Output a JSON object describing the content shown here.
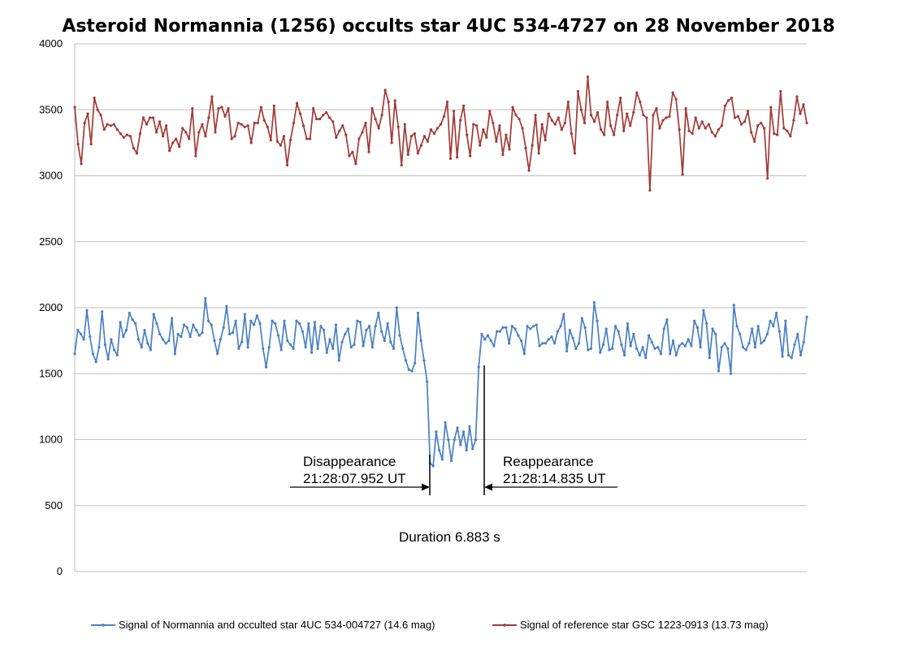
{
  "chart_data": {
    "type": "line",
    "title": "Asteroid Normannia (1256) occults star 4UC 534-4727 on 28 November 2018",
    "xlabel": "",
    "ylabel": "",
    "ylim": [
      0,
      4000
    ],
    "yticks": [
      0,
      500,
      1000,
      1500,
      2000,
      2500,
      3000,
      3500,
      4000
    ],
    "grid": true,
    "legend_position": "bottom",
    "series": [
      {
        "name": "Signal of Normannia and occulted star 4UC 534-004727 (14.6 mag)",
        "color": "#4a7fc1",
        "values": [
          1650,
          1830,
          1800,
          1760,
          1980,
          1780,
          1650,
          1590,
          1700,
          1970,
          1720,
          1610,
          1760,
          1680,
          1640,
          1890,
          1780,
          1830,
          1960,
          1910,
          1880,
          1760,
          1700,
          1830,
          1730,
          1680,
          1950,
          1880,
          1800,
          1760,
          1730,
          1750,
          1920,
          1650,
          1800,
          1780,
          1870,
          1850,
          1780,
          1870,
          1830,
          1790,
          1810,
          2070,
          1900,
          1870,
          1750,
          1650,
          1760,
          1850,
          2010,
          1800,
          1810,
          1900,
          1690,
          1740,
          1950,
          1700,
          1900,
          1870,
          1940,
          1880,
          1690,
          1550,
          1700,
          1900,
          1880,
          1790,
          1680,
          1900,
          1750,
          1720,
          1690,
          1900,
          1880,
          1820,
          1700,
          1880,
          1660,
          1890,
          1690,
          1860,
          1830,
          1660,
          1760,
          1690,
          1870,
          1600,
          1740,
          1800,
          1840,
          1700,
          1720,
          1900,
          1890,
          1710,
          1830,
          1860,
          1700,
          1860,
          1960,
          1820,
          1750,
          1880,
          1740,
          1690,
          2000,
          1790,
          1690,
          1600,
          1530,
          1520,
          1580,
          1960,
          1750,
          1600,
          1440,
          820,
          800,
          1060,
          920,
          850,
          1130,
          1000,
          840,
          1000,
          1090,
          960,
          1060,
          920,
          1100,
          930,
          1000,
          1550,
          1800,
          1760,
          1790,
          1750,
          1710,
          1820,
          1820,
          1850,
          1850,
          1730,
          1860,
          1840,
          1790,
          1750,
          1650,
          1860,
          1840,
          1860,
          1870,
          1710,
          1730,
          1730,
          1760,
          1780,
          1730,
          1820,
          1860,
          1950,
          1670,
          1830,
          1770,
          1690,
          1730,
          1920,
          1850,
          1680,
          1690,
          2040,
          1900,
          1660,
          1720,
          1840,
          1680,
          1690,
          1860,
          1820,
          1720,
          1640,
          1880,
          1710,
          1800,
          1690,
          1640,
          1700,
          1620,
          1790,
          1740,
          1690,
          1700,
          1650,
          1840,
          1910,
          1650,
          1750,
          1640,
          1710,
          1730,
          1710,
          1760,
          1710,
          1900,
          1850,
          1700,
          1980,
          1880,
          1620,
          1840,
          1800,
          1520,
          1700,
          1730,
          1690,
          1500,
          2020,
          1860,
          1800,
          1700,
          1680,
          1730,
          1840,
          1700,
          1860,
          1730,
          1750,
          1800,
          1900,
          1860,
          1960,
          1820,
          1630,
          1900,
          1640,
          1620,
          1720,
          1800,
          1640,
          1740,
          1930
        ]
      },
      {
        "name": "Signal of reference star GSC 1223-0913 (13.73 mag)",
        "color": "#a03a36",
        "values": [
          3520,
          3240,
          3090,
          3400,
          3470,
          3240,
          3590,
          3500,
          3460,
          3350,
          3390,
          3380,
          3390,
          3350,
          3320,
          3290,
          3310,
          3300,
          3210,
          3170,
          3320,
          3440,
          3390,
          3440,
          3440,
          3330,
          3410,
          3300,
          3380,
          3190,
          3250,
          3280,
          3220,
          3360,
          3330,
          3280,
          3510,
          3150,
          3330,
          3390,
          3300,
          3440,
          3600,
          3330,
          3510,
          3520,
          3450,
          3510,
          3280,
          3300,
          3400,
          3390,
          3370,
          3380,
          3250,
          3400,
          3400,
          3520,
          3420,
          3370,
          3270,
          3530,
          3260,
          3230,
          3300,
          3080,
          3270,
          3400,
          3550,
          3470,
          3380,
          3280,
          3280,
          3510,
          3430,
          3430,
          3460,
          3480,
          3440,
          3410,
          3290,
          3340,
          3380,
          3310,
          3150,
          3180,
          3090,
          3280,
          3330,
          3400,
          3180,
          3510,
          3430,
          3360,
          3460,
          3650,
          3560,
          3250,
          3570,
          3370,
          3080,
          3390,
          3160,
          3300,
          3320,
          3170,
          3230,
          3300,
          3260,
          3350,
          3320,
          3360,
          3390,
          3450,
          3560,
          3130,
          3490,
          3140,
          3420,
          3530,
          3310,
          3150,
          3390,
          3380,
          3230,
          3350,
          3290,
          3490,
          3400,
          3260,
          3380,
          3160,
          3310,
          3200,
          3520,
          3460,
          3430,
          3360,
          3210,
          3040,
          3230,
          3460,
          3170,
          3390,
          3270,
          3470,
          3420,
          3390,
          3440,
          3350,
          3400,
          3560,
          3320,
          3170,
          3640,
          3500,
          3400,
          3750,
          3460,
          3410,
          3480,
          3350,
          3310,
          3560,
          3380,
          3310,
          3460,
          3590,
          3340,
          3470,
          3380,
          3480,
          3630,
          3560,
          3460,
          3440,
          2890,
          3460,
          3510,
          3360,
          3420,
          3440,
          3450,
          3630,
          3580,
          3350,
          3010,
          3510,
          3340,
          3320,
          3440,
          3360,
          3410,
          3360,
          3390,
          3330,
          3300,
          3350,
          3380,
          3530,
          3570,
          3590,
          3440,
          3450,
          3390,
          3410,
          3490,
          3330,
          3260,
          3380,
          3400,
          3360,
          2980,
          3520,
          3320,
          3310,
          3640,
          3360,
          3340,
          3300,
          3420,
          3600,
          3470,
          3540,
          3400
        ]
      }
    ],
    "annotations": [
      {
        "id": "disappearance",
        "lines": [
          "Disappearance",
          "21:28:07.952 UT"
        ]
      },
      {
        "id": "reappearance",
        "lines": [
          "Reappearance",
          "21:28:14.835 UT"
        ]
      },
      {
        "id": "duration",
        "lines": [
          "Duration 6.883 s"
        ]
      }
    ]
  }
}
